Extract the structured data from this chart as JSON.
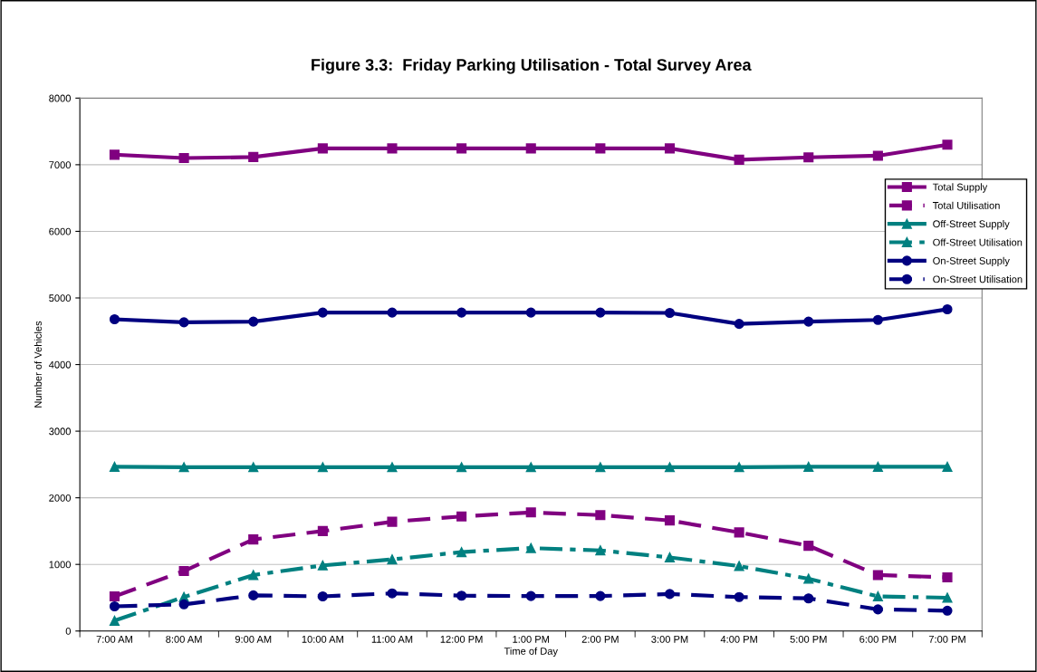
{
  "chart_data": {
    "type": "line",
    "title": "Figure 3.3:  Friday Parking Utilisation - Total Survey Area",
    "xlabel": "Time of Day",
    "ylabel": "Number of Vehicles",
    "categories": [
      "7:00 AM",
      "8:00 AM",
      "9:00 AM",
      "10:00 AM",
      "11:00 AM",
      "12:00 PM",
      "1:00 PM",
      "2:00 PM",
      "3:00 PM",
      "4:00 PM",
      "5:00 PM",
      "6:00 PM",
      "7:00 PM"
    ],
    "ylim": [
      0,
      8000
    ],
    "yticks": [
      0,
      1000,
      2000,
      3000,
      4000,
      5000,
      6000,
      7000,
      8000
    ],
    "grid": "y",
    "legend": "right",
    "series": [
      {
        "name": "Total Supply",
        "color": "#800080",
        "marker": "square",
        "line_style": "solid",
        "values": [
          7150,
          7100,
          7115,
          7245,
          7245,
          7245,
          7245,
          7245,
          7245,
          7075,
          7110,
          7135,
          7300
        ]
      },
      {
        "name": "Total Utilisation",
        "color": "#800080",
        "marker": "square",
        "line_style": "dashed",
        "values": [
          520,
          900,
          1375,
          1500,
          1640,
          1720,
          1780,
          1740,
          1660,
          1480,
          1280,
          840,
          805
        ]
      },
      {
        "name": "Off-Street Supply",
        "color": "#008080",
        "marker": "triangle",
        "line_style": "solid",
        "values": [
          2465,
          2460,
          2460,
          2460,
          2460,
          2460,
          2460,
          2460,
          2460,
          2460,
          2465,
          2465,
          2465
        ]
      },
      {
        "name": "Off-Street Utilisation",
        "color": "#008080",
        "marker": "triangle",
        "line_style": "dashdot",
        "values": [
          155,
          510,
          840,
          985,
          1075,
          1185,
          1245,
          1210,
          1105,
          975,
          785,
          520,
          500
        ]
      },
      {
        "name": "On-Street Supply",
        "color": "#000080",
        "marker": "circle",
        "line_style": "solid",
        "values": [
          4680,
          4635,
          4645,
          4780,
          4780,
          4780,
          4780,
          4780,
          4775,
          4610,
          4645,
          4670,
          4830
        ]
      },
      {
        "name": "On-Street Utilisation",
        "color": "#000080",
        "marker": "circle",
        "line_style": "dashed",
        "values": [
          370,
          400,
          535,
          520,
          565,
          530,
          525,
          525,
          555,
          510,
          490,
          325,
          305
        ]
      }
    ]
  }
}
